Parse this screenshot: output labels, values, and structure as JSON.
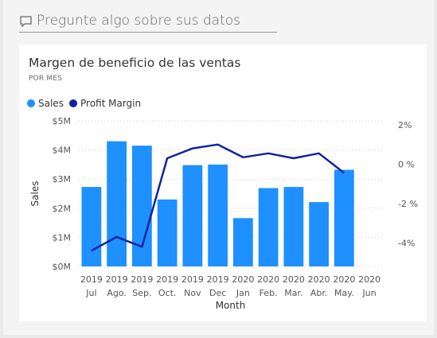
{
  "qa_placeholder": "Pregunte algo sobre sus datos",
  "qa_icon": "chat-bubble-icon",
  "colors": {
    "bar": "#1E90FF",
    "line": "#12239E",
    "grid": "#cccccc"
  },
  "chart_data": {
    "type": "bar",
    "title": "Margen de beneficio de las ventas",
    "subtitle": "POR MES",
    "xlabel": "Month",
    "ylabel": "Sales",
    "legend_position": "top-left",
    "categories": [
      "2019 Jul",
      "2019 Ago.",
      "2019 Sep.",
      "2019 Oct.",
      "2019 Nov",
      "2019 Dec",
      "2020 Jan",
      "2020 Feb.",
      "2020 Mar.",
      "2020 Abr.",
      "2020 May.",
      "2020 Jun"
    ],
    "x_tick_labels": [
      [
        "2019",
        "Jul"
      ],
      [
        "2019",
        "Ago."
      ],
      [
        "2019",
        "Sep."
      ],
      [
        "2019",
        "Oct."
      ],
      [
        "2019",
        "Nov"
      ],
      [
        "2019",
        "Dec"
      ],
      [
        "2020",
        "Jan"
      ],
      [
        "2020",
        "Feb."
      ],
      [
        "2020",
        "Mar."
      ],
      [
        "2020",
        "Abr."
      ],
      [
        "2020",
        "May."
      ],
      [
        "2020",
        "Jun"
      ]
    ],
    "ylim": [
      0,
      5000000
    ],
    "y_ticks": [
      0,
      1000000,
      2000000,
      3000000,
      4000000,
      5000000
    ],
    "y_tick_labels": [
      "$0M",
      "$1M",
      "$2M",
      "$3M",
      "$4M",
      "$5M"
    ],
    "y2lim": [
      -5.2,
      2.2
    ],
    "y2_ticks": [
      2,
      0,
      -2,
      -4
    ],
    "y2_tick_labels": [
      "2%",
      "0 %",
      "-2 %",
      "-4%"
    ],
    "series": [
      {
        "name": "Sales",
        "kind": "bar",
        "axis": "left",
        "values": [
          2730000,
          4300000,
          4150000,
          2300000,
          3480000,
          3500000,
          1660000,
          2690000,
          2730000,
          2210000,
          3320000,
          null
        ]
      },
      {
        "name": "Profit Margin",
        "kind": "line",
        "axis": "right",
        "values": [
          -4.4,
          -3.7,
          -4.2,
          0.3,
          0.8,
          1.0,
          0.35,
          0.55,
          0.3,
          0.55,
          -0.45,
          null
        ]
      }
    ]
  }
}
